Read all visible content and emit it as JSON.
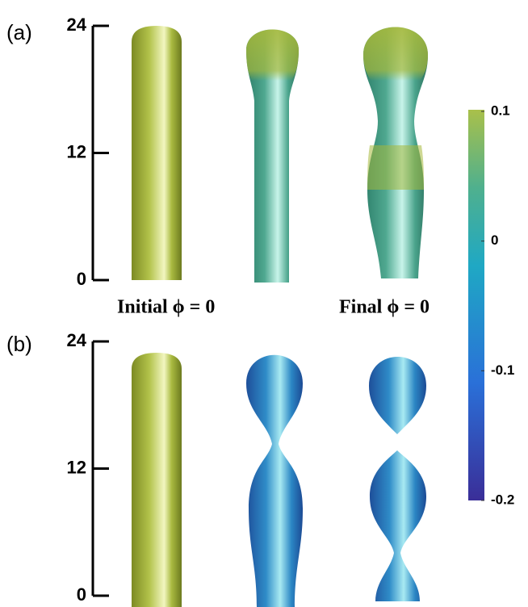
{
  "panels": [
    {
      "label": "(a)",
      "ylim": [
        0,
        24
      ],
      "yticks": [
        0,
        12,
        24
      ]
    },
    {
      "label": "(b)",
      "ylim": [
        0,
        24
      ],
      "yticks": [
        0,
        12,
        24
      ]
    }
  ],
  "captions": [
    "Initial ϕ = 0",
    "Final ϕ = 0"
  ],
  "colorbar": {
    "lim": [
      -0.2,
      0.1
    ],
    "ticks": [
      0.1,
      0,
      -0.1,
      -0.2
    ]
  }
}
